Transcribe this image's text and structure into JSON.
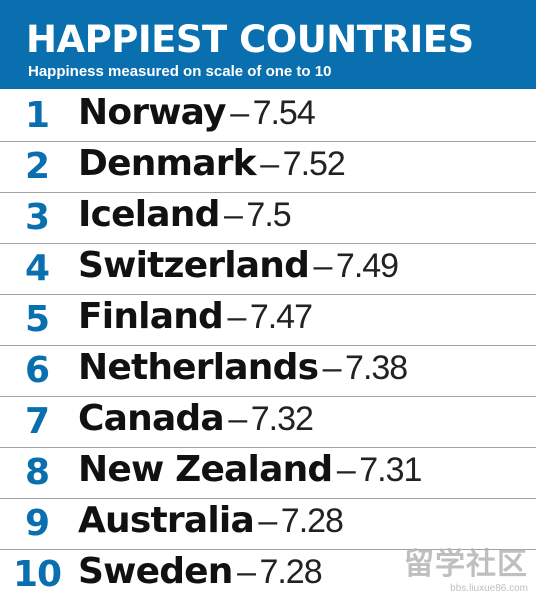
{
  "header": {
    "title": "HAPPIEST COUNTRIES",
    "subtitle": "Happiness measured on scale of one to 10"
  },
  "chart_data": {
    "type": "table",
    "title": "HAPPIEST COUNTRIES",
    "subtitle": "Happiness measured on scale of one to 10",
    "rows": [
      {
        "rank": "1",
        "country": "Norway",
        "score": "7.54"
      },
      {
        "rank": "2",
        "country": "Denmark",
        "score": "7.52"
      },
      {
        "rank": "3",
        "country": "Iceland",
        "score": "7.5"
      },
      {
        "rank": "4",
        "country": "Switzerland",
        "score": "7.49"
      },
      {
        "rank": "5",
        "country": "Finland",
        "score": "7.47"
      },
      {
        "rank": "6",
        "country": "Netherlands",
        "score": "7.38"
      },
      {
        "rank": "7",
        "country": "Canada",
        "score": "7.32"
      },
      {
        "rank": "8",
        "country": "New Zealand",
        "score": "7.31"
      },
      {
        "rank": "9",
        "country": "Australia",
        "score": "7.28"
      },
      {
        "rank": "10",
        "country": "Sweden",
        "score": "7.28"
      }
    ]
  },
  "separator": "–",
  "colors": {
    "header_bg": "#0a6fae",
    "rank_text": "#0a6fae",
    "country_text": "#111111",
    "divider": "#9fa3a6"
  },
  "watermark": {
    "main": "留学社区",
    "sub": "bbs.liuxue86.com"
  }
}
